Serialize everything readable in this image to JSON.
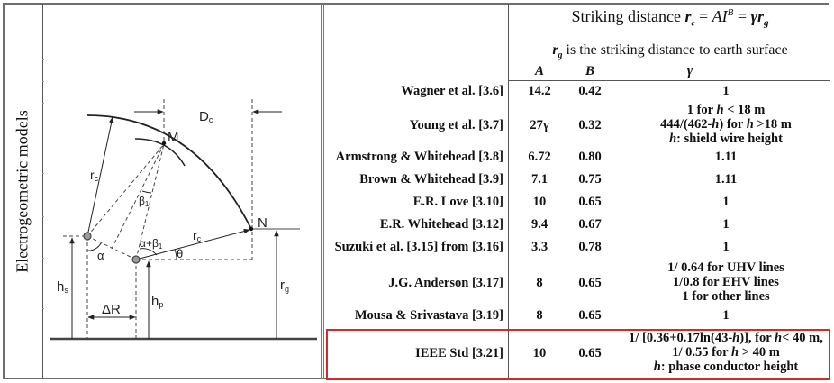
{
  "side_label": "Electrogeometric models",
  "diagram": {
    "labels": {
      "dc": "D",
      "dc_sub": "c",
      "m": "M",
      "n": "N",
      "rc_left": "r",
      "rc_left_sub": "c",
      "rc_right": "r",
      "rc_right_sub": "c",
      "beta1": "β",
      "beta1_sub": "1",
      "alpha_beta1": "α+β",
      "alpha_beta1_sub": "1",
      "alpha": "α",
      "theta": "θ",
      "hs": "h",
      "hs_sub": "s",
      "hp": "h",
      "hp_sub": "p",
      "rg": "r",
      "rg_sub": "g",
      "delta_r": "ΔR"
    }
  },
  "table": {
    "header_line1_text": "Striking distance ",
    "header_formula": {
      "rc": "r",
      "rc_sub": "c",
      "eq1": " = ",
      "A": "A",
      "I": "I",
      "B_sup": "B",
      "eq2": " = ",
      "gamma": "γ",
      "rg": "r",
      "rg_sub": "g"
    },
    "header_line2": {
      "rg": "r",
      "rg_sub": "g",
      "text": " is the striking distance to earth surface"
    },
    "columns": [
      "A",
      "B",
      "γ"
    ],
    "rows": [
      {
        "name": "Wagner et al. [3.6]",
        "A": "14.2",
        "B": "0.42",
        "gamma": [
          "1"
        ]
      },
      {
        "name": "Young et al. [3.7]",
        "A": "27γ",
        "B": "0.32",
        "gamma": [
          "1 for h < 18 m",
          "444/(462-h) for h >18 m",
          "h: shield wire height"
        ]
      },
      {
        "name": "Armstrong & Whitehead [3.8]",
        "A": "6.72",
        "B": "0.80",
        "gamma": [
          "1.11"
        ]
      },
      {
        "name": "Brown & Whitehead [3.9]",
        "A": "7.1",
        "B": "0.75",
        "gamma": [
          "1.11"
        ]
      },
      {
        "name": "E.R. Love [3.10]",
        "A": "10",
        "B": "0.65",
        "gamma": [
          "1"
        ]
      },
      {
        "name": "E.R. Whitehead [3.12]",
        "A": "9.4",
        "B": "0.67",
        "gamma": [
          "1"
        ]
      },
      {
        "name": "Suzuki et al. [3.15] from [3.16]",
        "A": "3.3",
        "B": "0.78",
        "gamma": [
          "1"
        ]
      },
      {
        "name": "J.G. Anderson [3.17]",
        "A": "8",
        "B": "0.65",
        "gamma": [
          "1/ 0.64 for UHV lines",
          "1/0.8 for EHV lines",
          "1 for other lines"
        ]
      },
      {
        "name": "Mousa & Srivastava [3.19]",
        "A": "8",
        "B": "0.65",
        "gamma": [
          "1"
        ]
      },
      {
        "name": "IEEE Std [3.21]",
        "A": "10",
        "B": "0.65",
        "gamma": [
          "1/ [0.36+0.17ln(43-h)], for h< 40 m,",
          "1/ 0.55 for h > 40 m",
          "h: phase conductor height"
        ],
        "highlighted": true
      }
    ]
  },
  "colors": {
    "highlight": "#d42a2a",
    "border": "#6e6e6e",
    "ink": "#111111",
    "diagram_line": "#222222",
    "node_fill": "#9a9a9a"
  }
}
